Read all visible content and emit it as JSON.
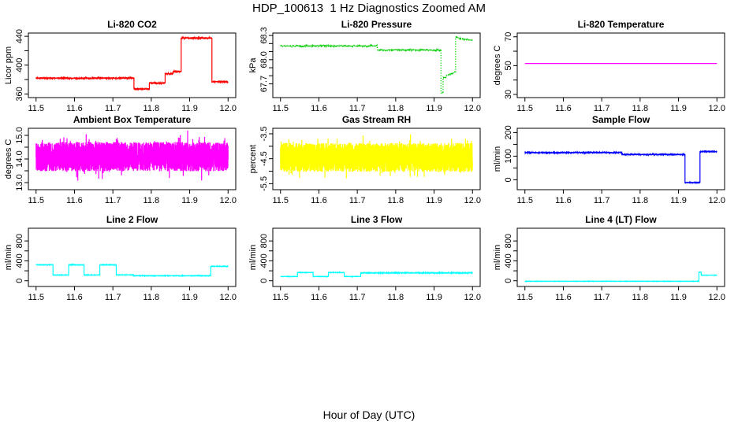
{
  "header": {
    "title": "HDP_100613  1 Hz Diagnostics Zoomed AM"
  },
  "footer": {
    "xlabel": "Hour of Day (UTC)"
  },
  "chart_data": {
    "type": "line",
    "title": "HDP_100613  1 Hz Diagnostics Zoomed AM",
    "xlabel": "Hour of Day (UTC)",
    "x": {
      "lim": [
        11.48,
        12.02
      ],
      "ticks": [
        11.5,
        11.6,
        11.7,
        11.8,
        11.9,
        12.0
      ],
      "tick_labels": [
        "11.5",
        "11.6",
        "11.7",
        "11.8",
        "11.9",
        "12.0"
      ]
    },
    "charts": [
      {
        "title": "Li-820 CO2",
        "ylabel": "Licor ppm",
        "color": "#FF0000",
        "style": "solid",
        "ylim": [
          355,
          444.5
        ],
        "yticks": [
          {
            "v": 360,
            "label": "360"
          },
          {
            "v": 380,
            "label": ""
          },
          {
            "v": 400,
            "label": "400"
          },
          {
            "v": 420,
            "label": ""
          },
          {
            "v": 440,
            "label": "440"
          }
        ],
        "noise": "tri",
        "noise_spikes": false,
        "segments": [
          [
            11.5,
            11.755,
            382,
            382,
            1.1
          ],
          [
            11.755,
            11.795,
            367,
            367,
            1.0
          ],
          [
            11.795,
            11.836,
            375,
            375,
            1.0
          ],
          [
            11.836,
            11.857,
            388,
            388,
            1.2
          ],
          [
            11.857,
            11.878,
            391,
            391,
            1.2
          ],
          [
            11.878,
            11.958,
            437.5,
            437.5,
            1.3
          ],
          [
            11.958,
            12.0,
            377,
            377,
            1.0
          ]
        ]
      },
      {
        "title": "Li-820 Pressure",
        "ylabel": "kPa",
        "color": "#00CD00",
        "style": "dotted",
        "ylim": [
          67.53,
          68.33
        ],
        "yticks": [
          {
            "v": 67.7,
            "label": "67.7"
          },
          {
            "v": 67.8,
            "label": ""
          },
          {
            "v": 67.9,
            "label": ""
          },
          {
            "v": 68.0,
            "label": "68.0"
          },
          {
            "v": 68.1,
            "label": ""
          },
          {
            "v": 68.2,
            "label": ""
          },
          {
            "v": 68.3,
            "label": "68.3"
          }
        ],
        "noise": "tri",
        "noise_spikes": false,
        "segments": [
          [
            11.5,
            11.752,
            68.17,
            68.17,
            0.012
          ],
          [
            11.752,
            11.918,
            68.12,
            68.12,
            0.012
          ],
          [
            11.918,
            11.9235,
            67.59,
            67.59,
            0.01
          ],
          [
            11.9235,
            11.932,
            67.78,
            67.78,
            0.008
          ],
          [
            11.932,
            11.956,
            67.8,
            67.85,
            0.008
          ],
          [
            11.956,
            11.962,
            68.28,
            68.28,
            0.006
          ],
          [
            11.962,
            12.0,
            68.265,
            68.24,
            0.008
          ]
        ]
      },
      {
        "title": "Li-820 Temperature",
        "ylabel": "degrees C",
        "color": "#FF00FF",
        "style": "solid",
        "ylim": [
          27.8,
          72.6
        ],
        "yticks": [
          {
            "v": 30,
            "label": "30"
          },
          {
            "v": 40,
            "label": ""
          },
          {
            "v": 50,
            "label": "50"
          },
          {
            "v": 60,
            "label": ""
          },
          {
            "v": 70,
            "label": "70"
          }
        ],
        "noise": "tri",
        "noise_spikes": false,
        "segments": [
          [
            11.5,
            12.0,
            51.5,
            51.5,
            0
          ]
        ]
      },
      {
        "title": "Ambient Box Temperature",
        "ylabel": "degrees C",
        "color": "#FF00FF",
        "style": "solid",
        "ylim": [
          12.7,
          15.3
        ],
        "yticks": [
          {
            "v": 13.0,
            "label": "13.0"
          },
          {
            "v": 13.5,
            "label": ""
          },
          {
            "v": 14.0,
            "label": "14.0"
          },
          {
            "v": 14.5,
            "label": ""
          },
          {
            "v": 15.0,
            "label": "15.0"
          }
        ],
        "noise": "uniform",
        "noise_spikes": true,
        "segments": [
          [
            11.5,
            12.0,
            14.1,
            14.1,
            0.62
          ]
        ]
      },
      {
        "title": "Gas Stream RH",
        "ylabel": "percent",
        "color": "#FFFF00",
        "style": "solid",
        "ylim": [
          -5.74,
          -3.28
        ],
        "yticks": [
          {
            "v": -5.5,
            "label": "-5.5"
          },
          {
            "v": -5.0,
            "label": ""
          },
          {
            "v": -4.5,
            "label": "-4.5"
          },
          {
            "v": -4.0,
            "label": ""
          },
          {
            "v": -3.5,
            "label": "-3.5"
          }
        ],
        "noise": "uniform",
        "noise_spikes": true,
        "segments": [
          [
            11.5,
            12.0,
            -4.45,
            -4.45,
            0.58
          ]
        ]
      },
      {
        "title": "Sample Flow",
        "ylabel": "ml/min",
        "color": "#0000FF",
        "style": "solid",
        "ylim": [
          -42,
          218
        ],
        "yticks": [
          {
            "v": 0,
            "label": "0"
          },
          {
            "v": 50,
            "label": ""
          },
          {
            "v": 100,
            "label": "100"
          },
          {
            "v": 150,
            "label": ""
          },
          {
            "v": 200,
            "label": "200"
          }
        ],
        "noise": "tri",
        "noise_spikes": false,
        "segments": [
          [
            11.5,
            11.752,
            115,
            115,
            3
          ],
          [
            11.752,
            11.917,
            107,
            107,
            2.5
          ],
          [
            11.917,
            11.956,
            -12,
            -12,
            2
          ],
          [
            11.956,
            12.0,
            120,
            119,
            2
          ]
        ]
      },
      {
        "title": "Line 2 Flow",
        "ylabel": "ml/min",
        "color": "#00FFFF",
        "style": "solid",
        "ylim": [
          -115,
          1055
        ],
        "yticks": [
          {
            "v": 0,
            "label": "0"
          },
          {
            "v": 200,
            "label": ""
          },
          {
            "v": 400,
            "label": "400"
          },
          {
            "v": 600,
            "label": ""
          },
          {
            "v": 800,
            "label": "800"
          }
        ],
        "noise": "tri",
        "noise_spikes": false,
        "segments": [
          [
            11.5,
            11.544,
            320,
            320,
            7
          ],
          [
            11.544,
            11.585,
            115,
            115,
            6
          ],
          [
            11.585,
            11.625,
            320,
            320,
            7
          ],
          [
            11.625,
            11.666,
            115,
            115,
            6
          ],
          [
            11.666,
            11.709,
            320,
            320,
            7
          ],
          [
            11.709,
            11.754,
            118,
            118,
            6
          ],
          [
            11.754,
            11.955,
            100,
            100,
            6
          ],
          [
            11.955,
            12.0,
            290,
            290,
            7
          ]
        ]
      },
      {
        "title": "Line 3 Flow",
        "ylabel": "ml/min",
        "color": "#00FFFF",
        "style": "solid",
        "ylim": [
          -115,
          1055
        ],
        "yticks": [
          {
            "v": 0,
            "label": "0"
          },
          {
            "v": 200,
            "label": ""
          },
          {
            "v": 400,
            "label": "400"
          },
          {
            "v": 600,
            "label": ""
          },
          {
            "v": 800,
            "label": "800"
          }
        ],
        "noise": "tri",
        "noise_spikes": false,
        "segments": [
          [
            11.5,
            11.544,
            85,
            85,
            5
          ],
          [
            11.544,
            11.585,
            165,
            165,
            6
          ],
          [
            11.585,
            11.625,
            85,
            85,
            5
          ],
          [
            11.625,
            11.666,
            165,
            165,
            6
          ],
          [
            11.666,
            11.709,
            85,
            85,
            5
          ],
          [
            11.709,
            12.0,
            158,
            158,
            10
          ]
        ]
      },
      {
        "title": "Line 4 (LT) Flow",
        "ylabel": "ml/min",
        "color": "#00FFFF",
        "style": "solid",
        "ylim": [
          -115,
          1055
        ],
        "yticks": [
          {
            "v": 0,
            "label": "0"
          },
          {
            "v": 200,
            "label": ""
          },
          {
            "v": 400,
            "label": "400"
          },
          {
            "v": 600,
            "label": ""
          },
          {
            "v": 800,
            "label": "800"
          }
        ],
        "noise": "tri",
        "noise_spikes": false,
        "segments": [
          [
            11.5,
            11.953,
            -10,
            -10,
            4
          ],
          [
            11.953,
            11.959,
            172,
            172,
            5
          ],
          [
            11.959,
            12.0,
            112,
            112,
            4
          ]
        ]
      }
    ]
  }
}
